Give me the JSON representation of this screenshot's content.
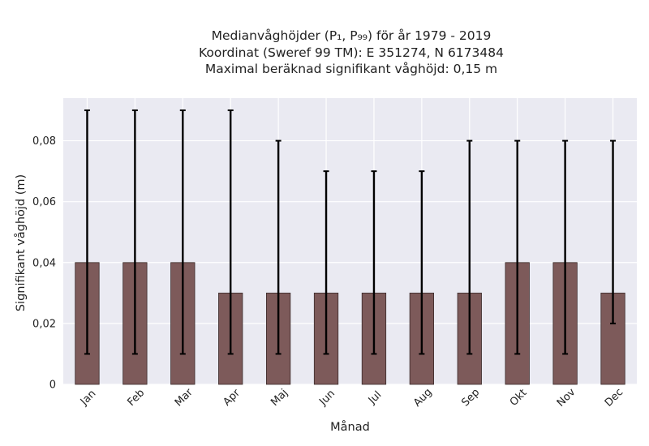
{
  "chart_data": {
    "type": "bar",
    "title_lines": [
      "Medianvåghöjder (P₁, P₉₉) för år 1979 - 2019",
      "Koordinat (Sweref 99 TM): E 351274, N 6173484",
      "Maximal beräknad signifikant våghöjd: 0,15 m"
    ],
    "xlabel": "Månad",
    "ylabel": "Signifikant våghöjd (m)",
    "categories": [
      "Jan",
      "Feb",
      "Mar",
      "Apr",
      "Maj",
      "Jun",
      "Jul",
      "Aug",
      "Sep",
      "Okt",
      "Nov",
      "Dec"
    ],
    "values": [
      0.04,
      0.04,
      0.04,
      0.03,
      0.03,
      0.03,
      0.03,
      0.03,
      0.03,
      0.04,
      0.04,
      0.03
    ],
    "error_low": [
      0.01,
      0.01,
      0.01,
      0.01,
      0.01,
      0.01,
      0.01,
      0.01,
      0.01,
      0.01,
      0.01,
      0.02
    ],
    "error_high": [
      0.09,
      0.09,
      0.09,
      0.09,
      0.08,
      0.07,
      0.07,
      0.07,
      0.08,
      0.08,
      0.08,
      0.08
    ],
    "yticks": [
      0,
      0.02,
      0.04,
      0.06,
      0.08
    ],
    "ytick_labels": [
      "0",
      "0,02",
      "0,04",
      "0,06",
      "0,08"
    ],
    "ylim": [
      0,
      0.094
    ],
    "grid": true,
    "colors": {
      "bar_fill": "#7d5a5a",
      "bar_edge": "#3a2a2a",
      "error_bar": "#000000",
      "plot_background": "#eaeaf2",
      "grid": "#ffffff"
    }
  }
}
